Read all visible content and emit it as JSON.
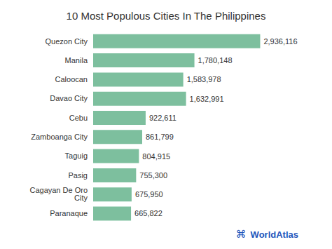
{
  "chart_data": {
    "type": "bar",
    "orientation": "horizontal",
    "title": "10 Most Populous Cities In The Philippines",
    "categories": [
      "Quezon City",
      "Manila",
      "Caloocan",
      "Davao City",
      "Cebu",
      "Zamboanga City",
      "Taguig",
      "Pasig",
      "Cagayan De Oro City",
      "Paranaque"
    ],
    "values": [
      2936116,
      1780148,
      1583978,
      1632991,
      922611,
      861799,
      804915,
      755300,
      675950,
      665822
    ],
    "value_labels": [
      "2,936,116",
      "1,780,148",
      "1,583,978",
      "1,632,991",
      "922,611",
      "861,799",
      "804,915",
      "755,300",
      "675,950",
      "665,822"
    ],
    "data_labels": true,
    "color": "#7DBF9E",
    "xlim": [
      0,
      3300000
    ],
    "tick_labels": "y",
    "grid": false,
    "annotations": [
      {
        "text": "⌘",
        "color": "#2255bb"
      },
      {
        "text": "WorldAtlas",
        "color": "#2255bb"
      }
    ]
  }
}
